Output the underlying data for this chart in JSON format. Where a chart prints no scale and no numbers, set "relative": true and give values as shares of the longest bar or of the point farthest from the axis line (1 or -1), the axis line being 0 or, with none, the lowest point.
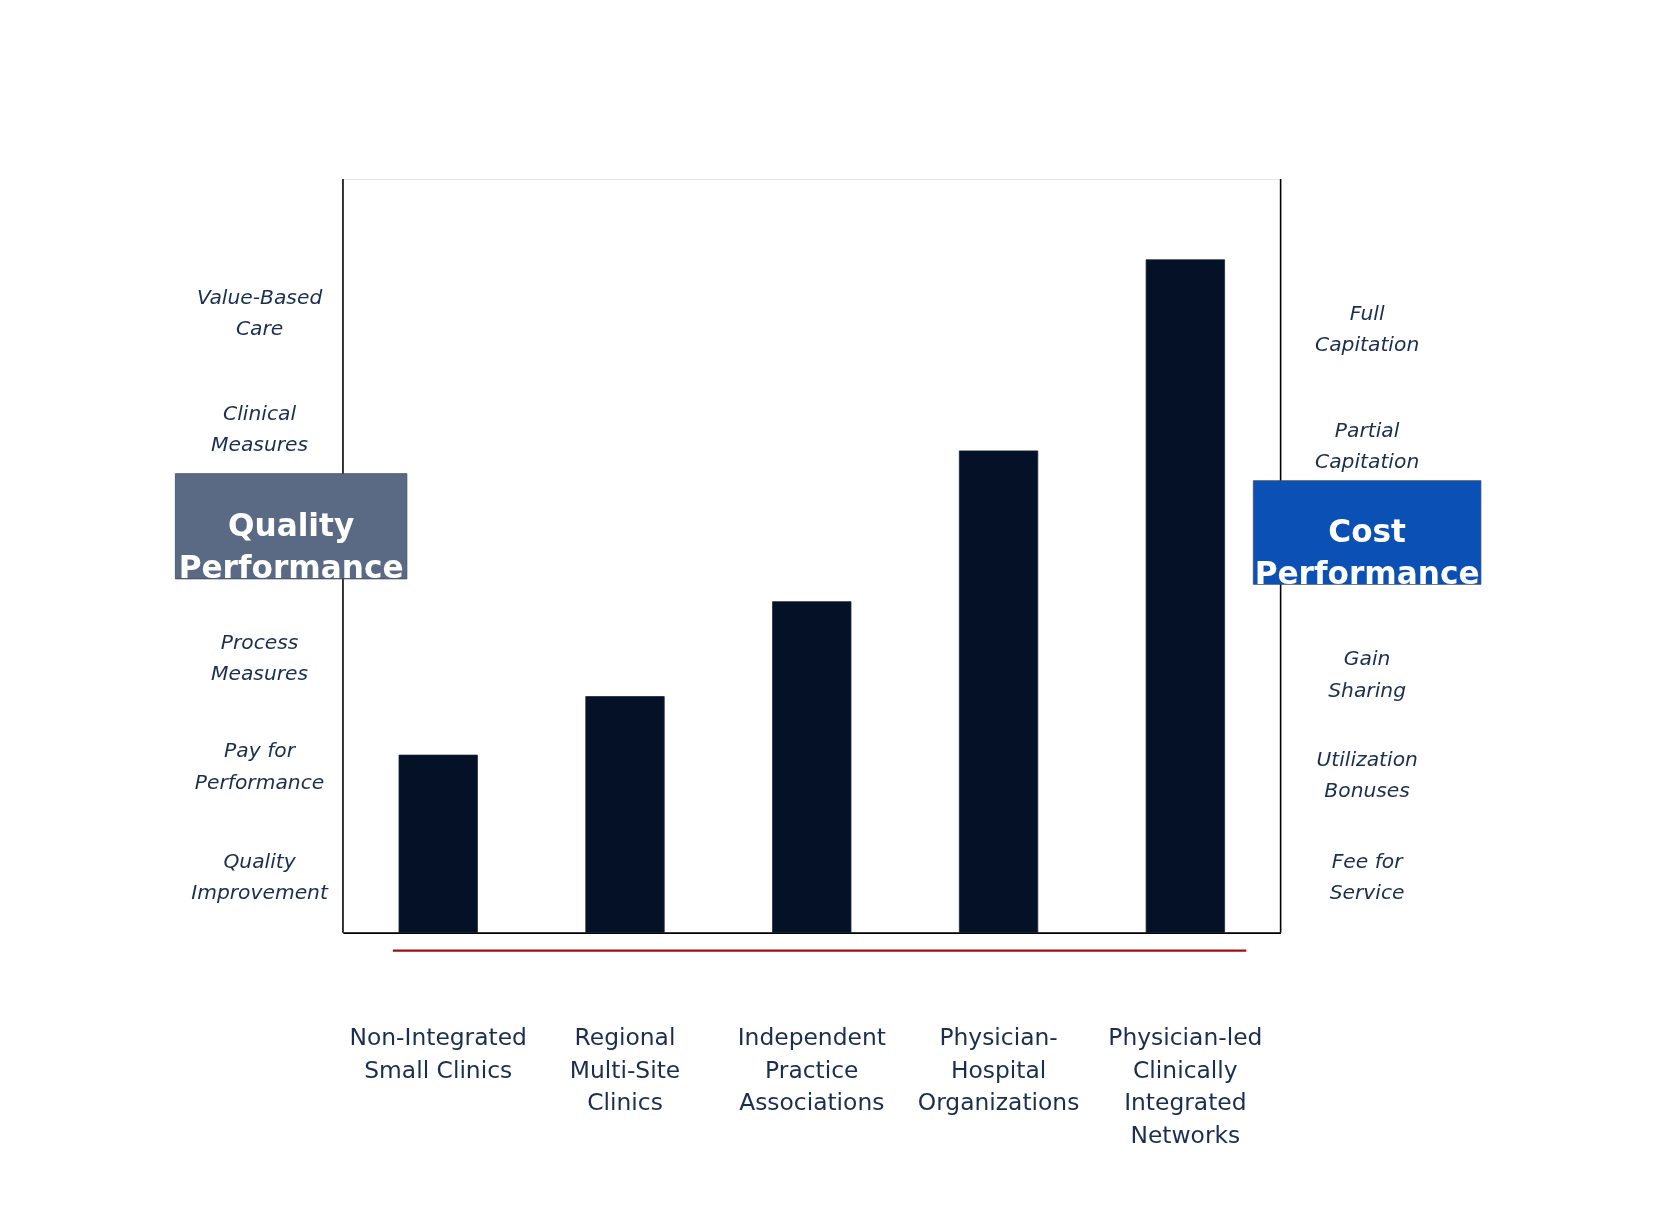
{
  "chart_data": {
    "type": "bar",
    "relative": true,
    "categories": [
      "Non-Integrated Small Clinics",
      "Regional Multi-Site Clinics",
      "Independent Practice Associations",
      "Physician-Hospital Organizations",
      "Physician-led Clinically Integrated Networks"
    ],
    "values": [
      0.264,
      0.351,
      0.492,
      0.716,
      1
    ],
    "color": "#041127",
    "ylabel": "Quality Performance",
    "y2label": "Cost Performance",
    "annotations": [
      "Value-Based Care",
      "Clinical Measures",
      "Process Measures",
      "Pay for Performance",
      "Quality Improvement",
      "Full Capitation",
      "Partial Capitation",
      "Gain Sharing",
      "Utilization Bonuses",
      "Fee for Service"
    ],
    "grid": false
  }
}
